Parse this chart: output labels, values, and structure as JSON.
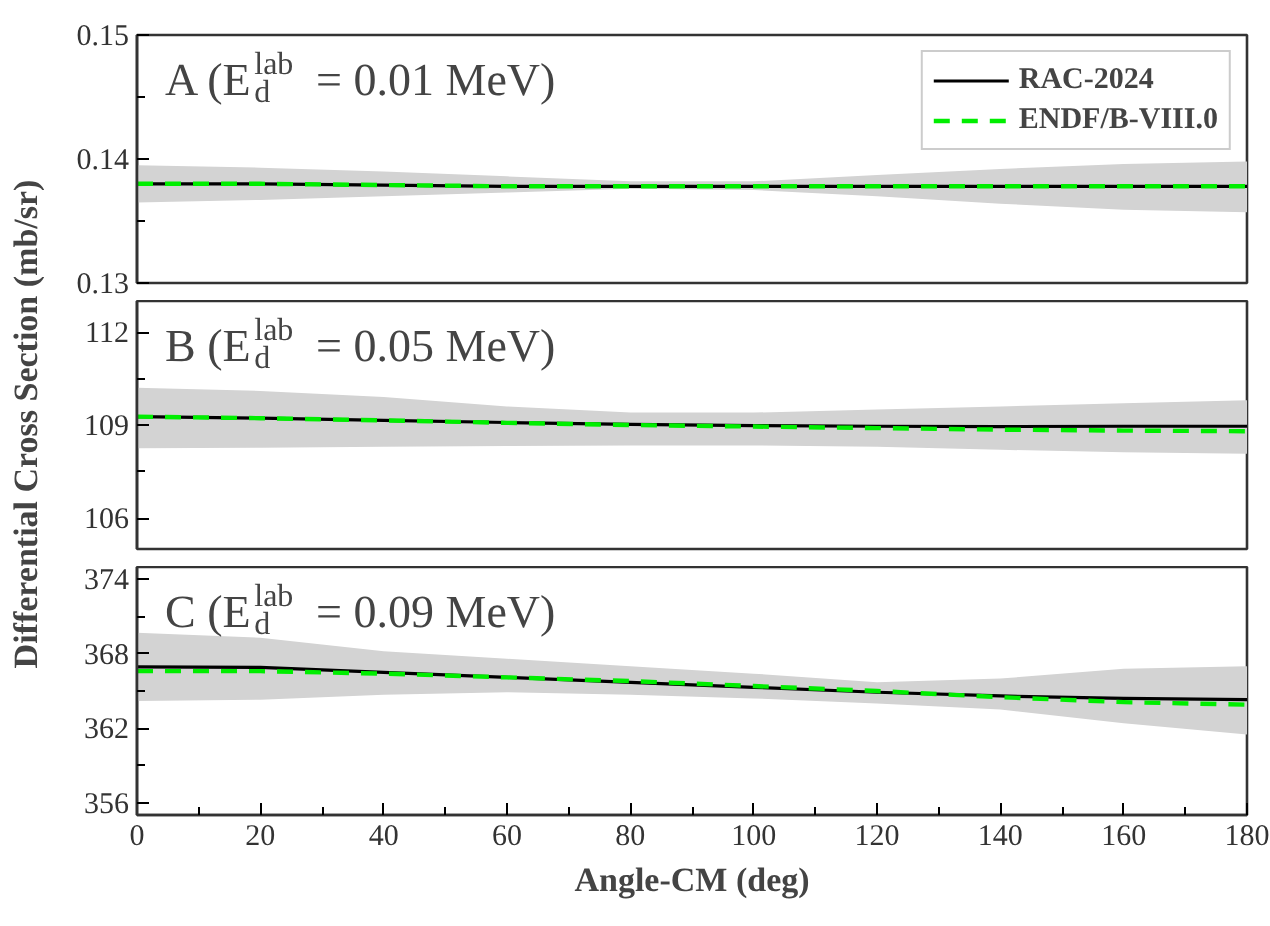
{
  "chart_data": [
    {
      "type": "line",
      "annotations": [
        "A (E$_{d}$$^{lab}$ = 0.01 MeV)"
      ],
      "x": [
        0,
        20,
        40,
        60,
        80,
        100,
        120,
        140,
        160,
        180
      ],
      "xlim": [
        0,
        180
      ],
      "ylim": [
        0.13,
        0.15
      ],
      "yticks": [
        0.13,
        {
          "value": 0.135,
          "label": null
        },
        0.14,
        {
          "value": 0.145,
          "label": null
        },
        0.15
      ],
      "tick_labels": "y",
      "legend": "top right",
      "grid": false,
      "series": [
        {
          "name": "RAC-2024",
          "color": "#000000",
          "line_style": "solid",
          "values": [
            0.138,
            0.138,
            0.1379,
            0.1378,
            0.1378,
            0.1378,
            0.1378,
            0.1378,
            0.1378,
            0.1378
          ],
          "lower": [
            0.1365,
            0.1367,
            0.137,
            0.1373,
            0.1376,
            0.1375,
            0.137,
            0.1364,
            0.1359,
            0.1357
          ],
          "upper": [
            0.1395,
            0.1393,
            0.139,
            0.1386,
            0.1382,
            0.1382,
            0.1387,
            0.1392,
            0.1396,
            0.1398
          ]
        },
        {
          "name": "ENDF/B-VIII.0",
          "color": "#00ee00",
          "line_style": "dashed",
          "values": [
            0.138,
            0.138,
            0.1379,
            0.1378,
            0.1378,
            0.1378,
            0.1378,
            0.1378,
            0.1378,
            0.1378
          ]
        }
      ]
    },
    {
      "type": "line",
      "annotations": [
        "B (E$_{d}$$^{lab}$ = 0.05 MeV)"
      ],
      "ylabel": "Differential Cross Section (mb/sr)",
      "x": [
        0,
        20,
        40,
        60,
        80,
        100,
        120,
        140,
        160,
        180
      ],
      "xlim": [
        0,
        180
      ],
      "ylim": [
        105,
        113
      ],
      "yticks": [
        106,
        {
          "value": 107.5,
          "label": null
        },
        109,
        {
          "value": 110.5,
          "label": null
        },
        112
      ],
      "tick_labels": "y",
      "grid": false,
      "series": [
        {
          "color": "#000000",
          "line_style": "solid",
          "values": [
            109.27,
            109.22,
            109.15,
            109.08,
            109.02,
            108.98,
            108.96,
            108.95,
            108.96,
            108.96
          ],
          "lower": [
            108.25,
            108.27,
            108.3,
            108.32,
            108.34,
            108.34,
            108.3,
            108.2,
            108.12,
            108.07
          ],
          "upper": [
            110.2,
            110.1,
            109.9,
            109.6,
            109.4,
            109.4,
            109.5,
            109.6,
            109.7,
            109.8
          ]
        },
        {
          "color": "#00ee00",
          "line_style": "dashed",
          "values": [
            109.27,
            109.22,
            109.15,
            109.07,
            109.0,
            108.95,
            108.9,
            108.85,
            108.82,
            108.8
          ]
        }
      ]
    },
    {
      "type": "line",
      "annotations": [
        "C (E$_{d}$$^{lab}$ = 0.09 MeV)"
      ],
      "xlabel": "Angle-CM (deg)",
      "x": [
        0,
        20,
        40,
        60,
        80,
        100,
        120,
        140,
        160,
        180
      ],
      "xlim": [
        0,
        180
      ],
      "xticks": [
        0,
        {
          "value": 10,
          "label": null
        },
        20,
        {
          "value": 30,
          "label": null
        },
        40,
        {
          "value": 50,
          "label": null
        },
        60,
        {
          "value": 70,
          "label": null
        },
        80,
        {
          "value": 90,
          "label": null
        },
        100,
        {
          "value": 110,
          "label": null
        },
        120,
        {
          "value": 130,
          "label": null
        },
        140,
        {
          "value": 150,
          "label": null
        },
        160,
        {
          "value": 170,
          "label": null
        },
        180
      ],
      "ylim": [
        355,
        375
      ],
      "yticks": [
        356,
        {
          "value": 359,
          "label": null
        },
        362,
        {
          "value": 365,
          "label": null
        },
        368,
        {
          "value": 371,
          "label": null
        },
        374
      ],
      "grid": false,
      "series": [
        {
          "color": "#000000",
          "line_style": "solid",
          "values": [
            366.95,
            366.9,
            366.5,
            366.1,
            365.7,
            365.3,
            364.9,
            364.6,
            364.4,
            364.3
          ],
          "lower": [
            364.2,
            364.3,
            364.7,
            364.9,
            364.7,
            364.4,
            364.0,
            363.5,
            362.4,
            361.5
          ],
          "upper": [
            369.7,
            369.3,
            368.2,
            367.6,
            367.0,
            366.4,
            365.7,
            366.0,
            366.8,
            367.0
          ]
        },
        {
          "color": "#00ee00",
          "line_style": "dashed",
          "values": [
            366.6,
            366.6,
            366.4,
            366.1,
            365.8,
            365.4,
            365.0,
            364.5,
            364.1,
            363.9
          ]
        }
      ]
    }
  ]
}
